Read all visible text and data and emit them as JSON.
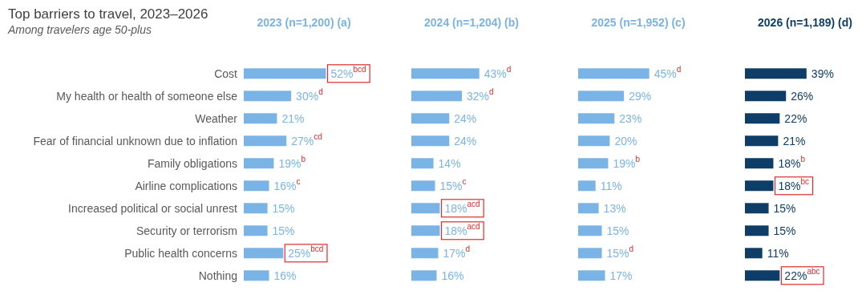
{
  "chart_data": [
    {
      "type": "bar",
      "orientation": "horizontal",
      "title": "2023 (n=1,200) (a)",
      "annotations": [
        "Top barriers to travel, 2023–2026",
        "Among travelers age 50-plus"
      ],
      "categories": [
        "Cost",
        "My health or health of someone else",
        "Weather",
        "Fear of financial unknown due to inflation",
        "Family obligations",
        "Airline complications",
        "Increased political or social unrest",
        "Security or terrorism",
        "Public health concerns",
        "Nothing"
      ],
      "color": "#7ab3e6",
      "values": [
        52,
        30,
        21,
        27,
        19,
        16,
        15,
        15,
        25,
        16
      ],
      "value_labels": [
        "52%$^{bcd}$",
        "30%$^{d}$",
        "21%",
        "27%$^{cd}$",
        "19%$^{b}$",
        "16%$^{c}$",
        "15%",
        "15%",
        "25%$^{bcd}$",
        "16%"
      ],
      "tick_labels": "y"
    },
    {
      "type": "bar",
      "orientation": "horizontal",
      "title": "2024 (n=1,204) (b)",
      "categories": [
        null,
        null,
        null,
        null,
        null,
        null,
        null,
        null,
        null,
        null
      ],
      "color": "#7ab3e6",
      "values": [
        43,
        32,
        24,
        24,
        14,
        15,
        18,
        18,
        17,
        16
      ],
      "value_labels": [
        "43%$^{d}$",
        "32%$^{d}$",
        "24%",
        "24%",
        "14%",
        "15%$^{c}$",
        "18%$^{acd}$",
        "18%$^{acd}$",
        "17%$^{d}$",
        "16%"
      ],
      "tick_labels": false
    },
    {
      "type": "bar",
      "orientation": "horizontal",
      "title": "2025 (n=1,952) (c)",
      "categories": [
        null,
        null,
        null,
        null,
        null,
        null,
        null,
        null,
        null,
        null
      ],
      "color": "#7ab3e6",
      "values": [
        45,
        29,
        23,
        20,
        19,
        11,
        13,
        15,
        15,
        17
      ],
      "value_labels": [
        "45%$^{d}$",
        "29%",
        "23%",
        "20%",
        "19%$^{b}$",
        "11%",
        "13%",
        "15%",
        "15%$^{d}$",
        "17%"
      ],
      "tick_labels": false
    },
    {
      "type": "bar",
      "orientation": "horizontal",
      "title": "2026 (n=1,189) (d)",
      "categories": [
        null,
        null,
        null,
        null,
        null,
        null,
        null,
        null,
        null,
        null
      ],
      "color": "#0e3d68",
      "values": [
        39,
        26,
        22,
        21,
        18,
        18,
        15,
        15,
        11,
        22
      ],
      "value_labels": [
        "39%",
        "26%",
        "22%",
        "21%",
        "18%$^{b}$",
        "18%$^{bc}$",
        "15%",
        "15%",
        "11%",
        "22%$^{abc}$"
      ],
      "tick_labels": false
    }
  ]
}
